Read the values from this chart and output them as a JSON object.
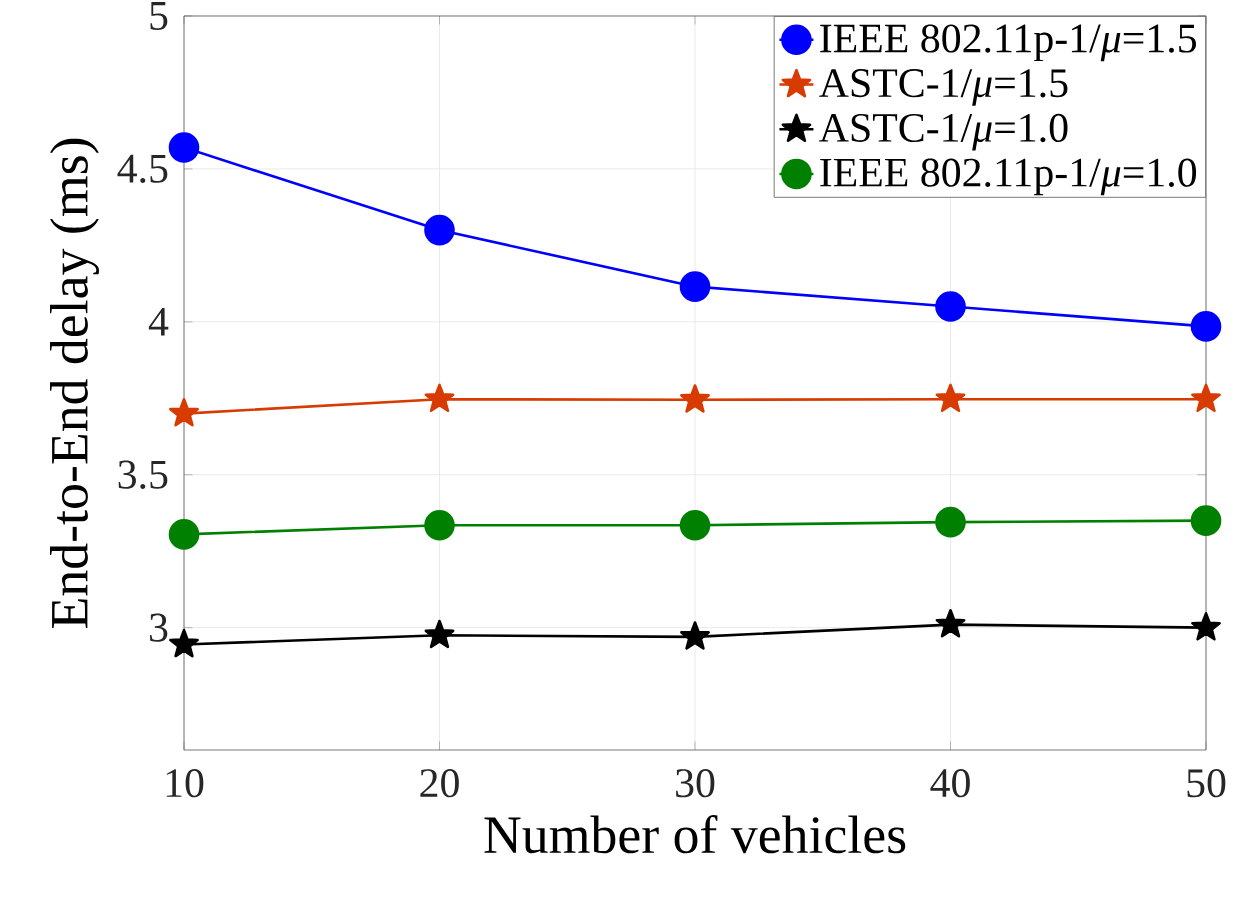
{
  "chart_data": {
    "type": "line",
    "xlabel": "Number of vehicles",
    "ylabel": "End-to-End delay (ms)",
    "x": [
      10,
      20,
      30,
      40,
      50
    ],
    "series": [
      {
        "name": "IEEE 802.11p-1/*μ*=1.5",
        "color": "#0000ff",
        "marker": "circle",
        "values": [
          4.57,
          4.3,
          4.115,
          4.05,
          3.985
        ]
      },
      {
        "name": "ASTC-1/*μ*=1.5",
        "color": "#d83b01",
        "marker": "star",
        "values": [
          3.7,
          3.747,
          3.745,
          3.747,
          3.747
        ]
      },
      {
        "name": "ASTC-1/*μ*=1.0",
        "color": "#000000",
        "marker": "star",
        "values": [
          2.945,
          2.975,
          2.97,
          3.01,
          3.0
        ]
      },
      {
        "name": "IEEE 802.11p-1/*μ*=1.0",
        "color": "#008000",
        "marker": "circle",
        "values": [
          3.305,
          3.335,
          3.335,
          3.345,
          3.35
        ]
      }
    ],
    "xlim": [
      10,
      50
    ],
    "ylim": [
      2.6,
      5
    ],
    "xticks": [
      10,
      20,
      30,
      40,
      50
    ],
    "yticks": [
      3,
      3.5,
      4,
      4.5,
      5
    ],
    "grid": true,
    "legend": "top right",
    "line_style": "solid"
  }
}
